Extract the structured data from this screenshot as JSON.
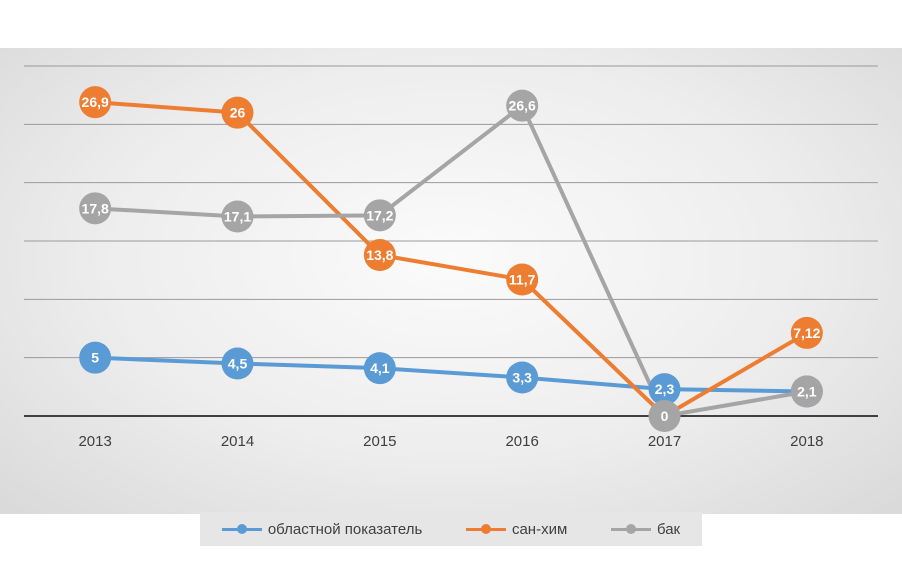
{
  "chart_data": {
    "type": "line",
    "categories": [
      "2013",
      "2014",
      "2015",
      "2016",
      "2017",
      "2018"
    ],
    "series": [
      {
        "name": "областной показатель",
        "color": "#5b9bd5",
        "values": [
          5,
          4.5,
          4.1,
          3.3,
          2.3,
          2.1
        ],
        "labels": [
          "5",
          "4,5",
          "4,1",
          "3,3",
          "2,3",
          "2,1"
        ]
      },
      {
        "name": "сан-хим",
        "color": "#ed7d31",
        "values": [
          26.9,
          26,
          13.8,
          11.7,
          0,
          7.12
        ],
        "labels": [
          "26,9",
          "26",
          "13,8",
          "11,7",
          "",
          "7,12"
        ]
      },
      {
        "name": "бак",
        "color": "#a5a5a5",
        "values": [
          17.8,
          17.1,
          17.2,
          26.6,
          0,
          2.1
        ],
        "labels": [
          "17,8",
          "17,1",
          "17,2",
          "26,6",
          "0",
          "2,1"
        ]
      }
    ],
    "ylim": [
      0,
      30
    ],
    "grid": true,
    "legend": "bottom"
  }
}
